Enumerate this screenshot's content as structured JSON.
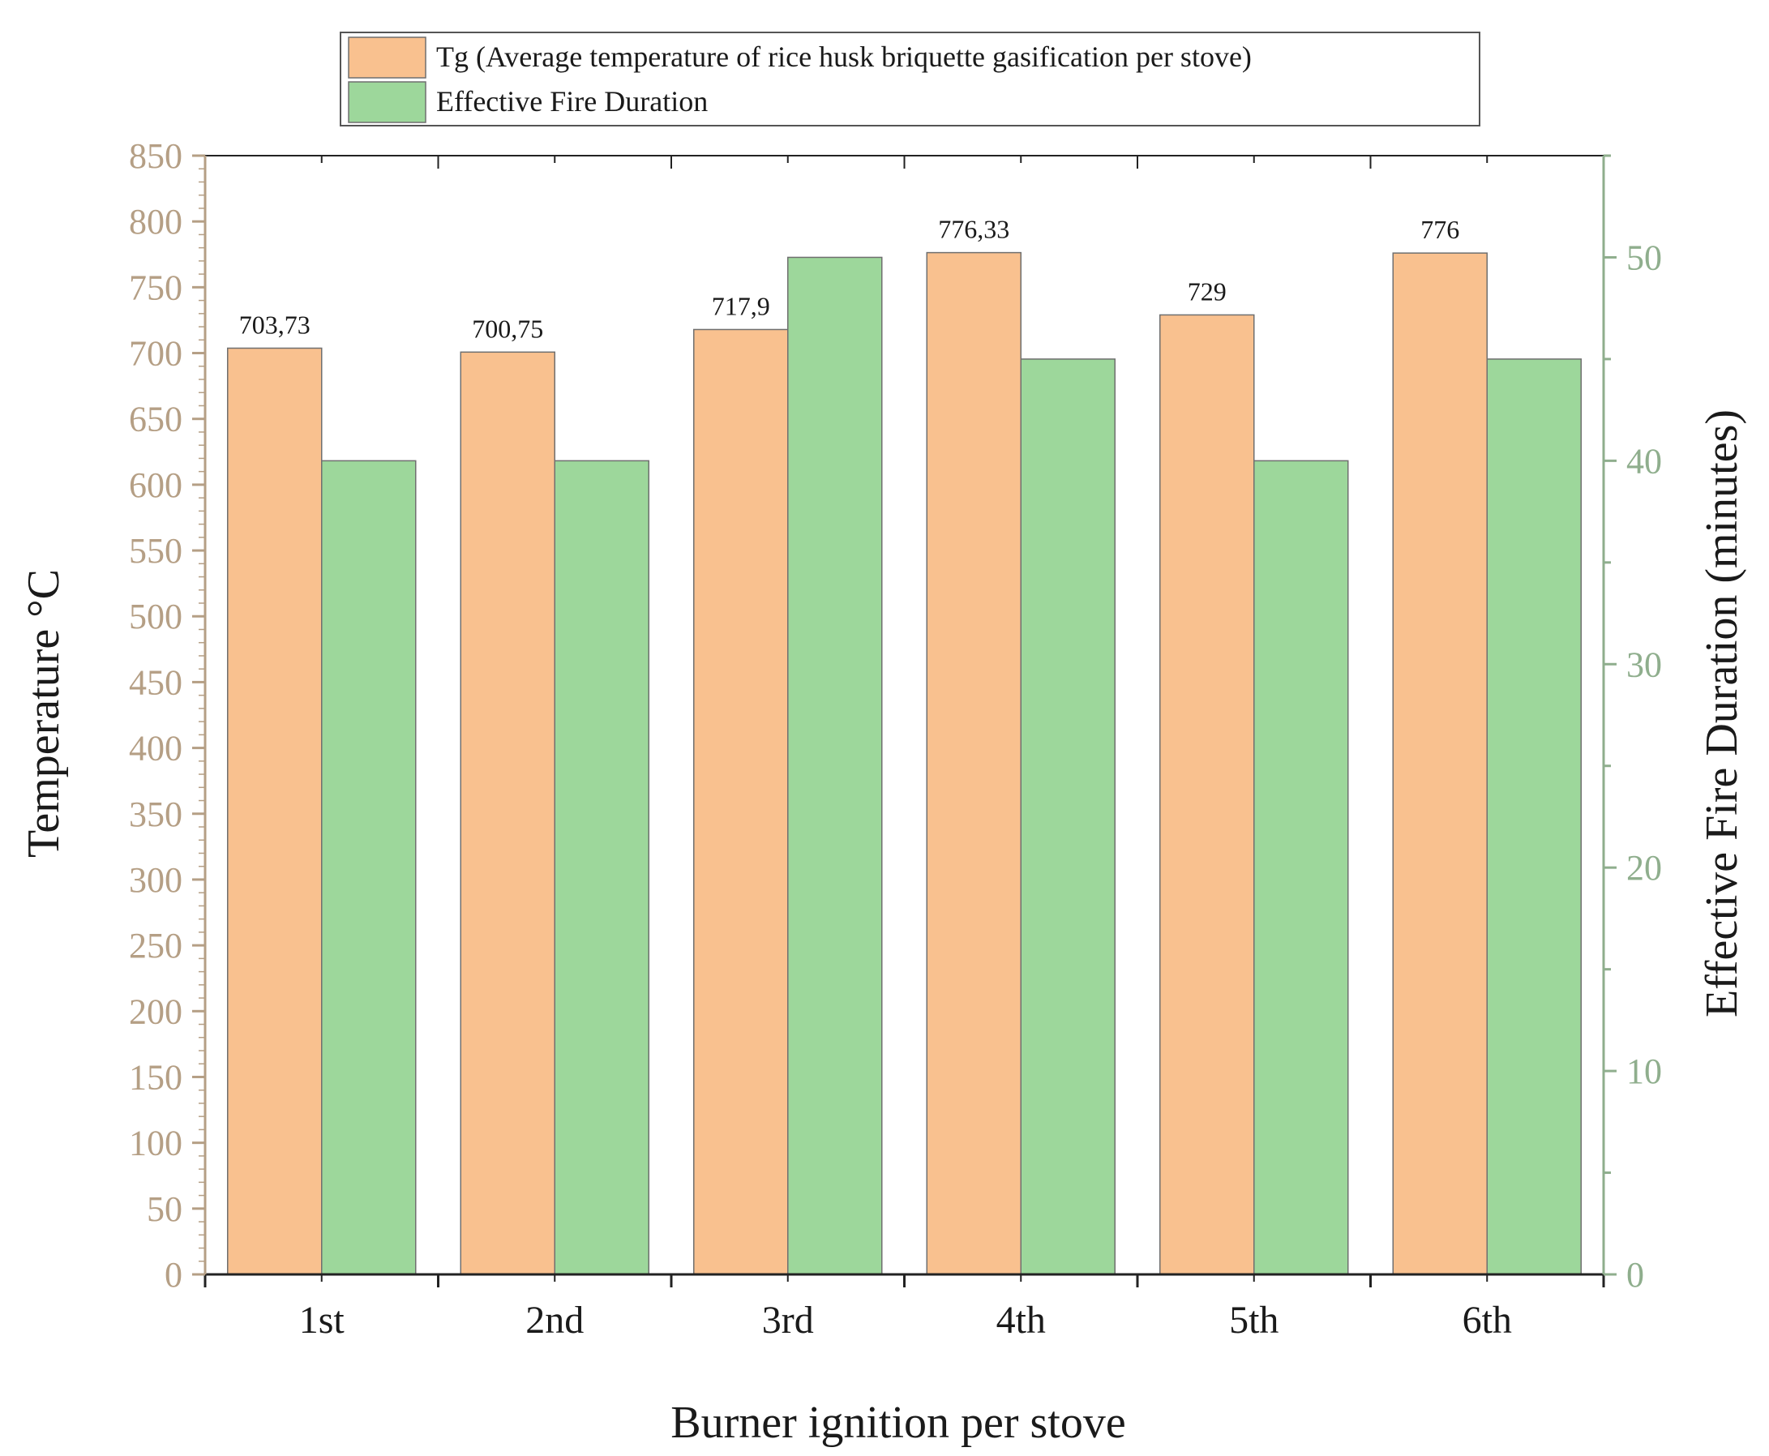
{
  "chart_data": {
    "type": "bar",
    "xlabel": "Burner ignition per stove",
    "ylabel": "Temperature °C",
    "y2label": "Effective Fire Duration (minutes)",
    "categories": [
      "1st",
      "2nd",
      "3rd",
      "4th",
      "5th",
      "6th"
    ],
    "ylim": [
      0,
      850
    ],
    "y2lim": [
      0,
      55
    ],
    "yticks": [
      "0",
      "50",
      "100",
      "150",
      "200",
      "250",
      "300",
      "350",
      "400",
      "450",
      "500",
      "550",
      "600",
      "650",
      "700",
      "750",
      "800",
      "850"
    ],
    "y2ticks": [
      "0",
      "10",
      "20",
      "30",
      "40",
      "50"
    ],
    "legend_position": "top",
    "series": [
      {
        "name": "Tg (Average temperature of rice husk briquette gasification per stove)",
        "axis": "left",
        "color": "#f9c18f",
        "values": [
          703.73,
          700.75,
          717.9,
          776.33,
          729,
          776
        ],
        "labels": [
          "703,73",
          "700,75",
          "717,9",
          "776,33",
          "729",
          "776"
        ]
      },
      {
        "name": "Effective Fire Duration",
        "axis": "right",
        "color": "#9dd79b",
        "values": [
          40,
          40,
          50,
          45,
          40,
          45
        ]
      }
    ],
    "colors": {
      "left_axis": "#b59f85",
      "right_axis": "#8fae8d",
      "bar_edge": "#6f6f6f",
      "text": "#1a1a1a"
    }
  }
}
